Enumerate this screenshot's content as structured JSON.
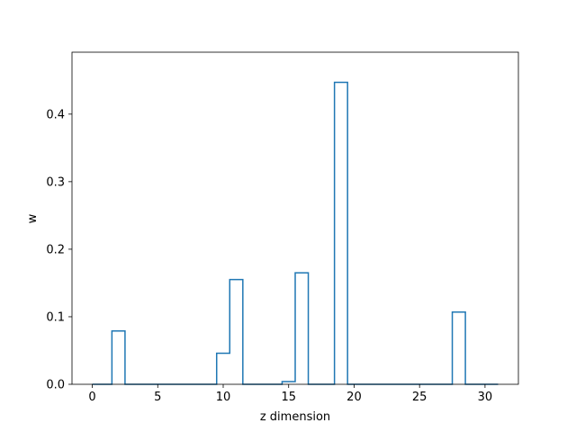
{
  "chart_data": {
    "type": "line",
    "style": "step",
    "x": [
      0,
      1,
      2,
      3,
      4,
      5,
      6,
      7,
      8,
      9,
      10,
      11,
      12,
      13,
      14,
      15,
      16,
      17,
      18,
      19,
      20,
      21,
      22,
      23,
      24,
      25,
      26,
      27,
      28,
      29,
      30,
      31
    ],
    "series": [
      {
        "values": [
          0,
          0,
          0.079,
          0,
          0,
          0,
          0,
          0,
          0,
          0,
          0.046,
          0.155,
          0,
          0,
          0,
          0.004,
          0.165,
          0,
          0,
          0.447,
          0,
          0,
          0,
          0,
          0,
          0,
          0,
          0,
          0.107,
          0,
          0,
          0
        ]
      }
    ],
    "title": "",
    "xlabel": "z dimension",
    "ylabel": "w",
    "xlim": [
      -1.55,
      32.55
    ],
    "ylim": [
      0,
      0.4917
    ],
    "xticks": [
      0,
      5,
      10,
      15,
      20,
      25,
      30
    ],
    "xtick_labels": [
      "0",
      "5",
      "10",
      "15",
      "20",
      "25",
      "30"
    ],
    "yticks": [
      0.0,
      0.1,
      0.2,
      0.3,
      0.4
    ],
    "ytick_labels": [
      "0.0",
      "0.1",
      "0.2",
      "0.3",
      "0.4"
    ],
    "grid": false,
    "legend": "none",
    "line_color": "#1f77b4"
  }
}
